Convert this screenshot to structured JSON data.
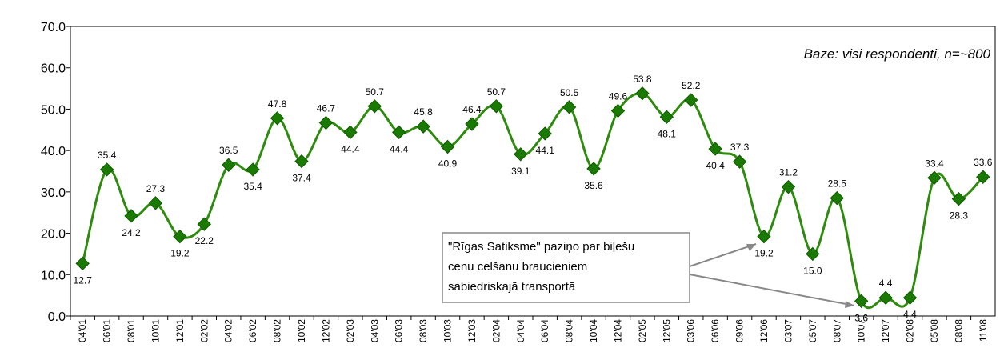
{
  "chart_data": {
    "type": "line",
    "annotations": [
      "Bāze: visi respondenti, n=~800",
      "\"Rīgas Satiksme\" paziņo par biļešu",
      "cenu celšanu braucieniem",
      "sabiedriskajā transportā"
    ],
    "categories": [
      "04'01",
      "06'01",
      "08'01",
      "10'01",
      "12'01",
      "02'02",
      "04'02",
      "06'02",
      "08'02",
      "10'02",
      "12'02",
      "02'03",
      "04'03",
      "06'03",
      "08'03",
      "10'03",
      "12'03",
      "02'04",
      "04'04",
      "06'04",
      "08'04",
      "10'04",
      "12'04",
      "02'05",
      "12'05",
      "03'06",
      "06'06",
      "09'06",
      "12'06",
      "03'07",
      "05'07",
      "08'07",
      "10'07",
      "12'07",
      "02'08",
      "05'08",
      "08'08",
      "11'08"
    ],
    "values": [
      12.7,
      35.4,
      24.2,
      27.3,
      19.2,
      22.2,
      36.5,
      35.4,
      47.8,
      37.4,
      46.7,
      44.4,
      50.7,
      44.4,
      45.8,
      40.9,
      46.4,
      50.7,
      39.1,
      44.1,
      50.5,
      35.6,
      49.6,
      53.8,
      48.1,
      52.2,
      40.4,
      37.3,
      19.2,
      31.2,
      15.0,
      28.5,
      3.6,
      4.4,
      4.4,
      33.4,
      28.3,
      33.6
    ],
    "value_labels": [
      "12.7",
      "35.4",
      "24.2",
      "27.3",
      "19.2",
      "22.2",
      "36.5",
      "35.4",
      "47.8",
      "37.4",
      "46.7",
      "44.4",
      "50.7",
      "44.4",
      "45.8",
      "40.9",
      "46.4",
      "50.7",
      "39.1",
      "44.1",
      "50.5",
      "35.6",
      "49.6",
      "53.8",
      "48.1",
      "52.2",
      "40.4",
      "37.3",
      "19.2",
      "31.2",
      "15.0",
      "28.5",
      "3.6",
      "4.4",
      "4.4",
      "33.4",
      "28.3",
      "33.6"
    ],
    "color": "#2e8b0e",
    "marker_color": "#1a7a00",
    "ylim": [
      0,
      70
    ],
    "yticks": [
      {
        "value": 0,
        "label": "0.0"
      },
      {
        "value": 10,
        "label": "10.0"
      },
      {
        "value": 20,
        "label": "20.0"
      },
      {
        "value": 30,
        "label": "30.0"
      },
      {
        "value": 40,
        "label": "40.0"
      },
      {
        "value": 50,
        "label": "50.0"
      },
      {
        "value": 60,
        "label": "60.0"
      },
      {
        "value": 70,
        "label": "70.0"
      }
    ]
  }
}
